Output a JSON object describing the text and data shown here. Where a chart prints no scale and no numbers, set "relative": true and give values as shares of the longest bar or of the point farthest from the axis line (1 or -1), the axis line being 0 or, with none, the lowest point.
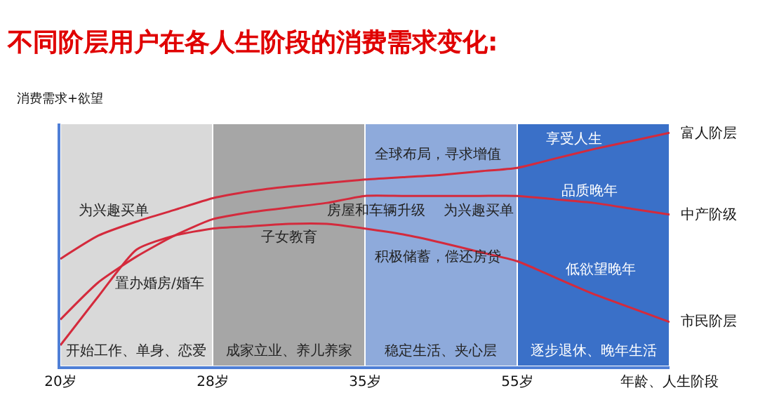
{
  "chart_data": {
    "type": "line",
    "title": "不同阶层用户在各人生阶段的消费需求变化:",
    "ylabel": "消费需求+欲望",
    "relative": true,
    "legend": false,
    "grid": false,
    "tick_labels": "x",
    "categories": [
      "20岁",
      null,
      null,
      null,
      "28岁",
      null,
      null,
      null,
      "35岁",
      null,
      null,
      null,
      "55岁",
      null,
      null,
      null,
      "年龄、人生阶段"
    ],
    "series": [
      {
        "name": "富人阶层",
        "color": "#d42a3c",
        "values": [
          0.46,
          0.56,
          0.62,
          0.67,
          0.72,
          0.75,
          0.77,
          0.785,
          0.8,
          0.81,
          0.82,
          0.835,
          0.85,
          0.89,
          0.93,
          0.965,
          1
        ]
      },
      {
        "name": "中产阶级",
        "color": "#d42a3c",
        "values": [
          0.2,
          0.36,
          0.47,
          0.56,
          0.63,
          0.66,
          0.68,
          0.7,
          0.73,
          0.73,
          0.73,
          0.73,
          0.73,
          0.715,
          0.7,
          0.675,
          0.65
        ]
      },
      {
        "name": "市民阶层",
        "color": "#d42a3c",
        "values": [
          0.09,
          0.3,
          0.5,
          0.56,
          0.59,
          0.6,
          0.61,
          0.61,
          0.59,
          0.565,
          0.53,
          0.49,
          0.45,
          0.38,
          0.31,
          0.25,
          0.19
        ]
      }
    ],
    "bands": [
      {
        "axis": "x",
        "from": "20岁",
        "to": "28岁",
        "label": "开始工作、单身、恋爱",
        "color": "#d9d9d9"
      },
      {
        "axis": "x",
        "from": "28岁",
        "to": "35岁",
        "label": "成家立业、养儿养家",
        "color": "#a6a6a6"
      },
      {
        "axis": "x",
        "from": "35岁",
        "to": "55岁",
        "label": "稳定生活、夹心层",
        "color": "#8eaadb"
      },
      {
        "axis": "x",
        "from": "55岁",
        "to": "年龄、人生阶段",
        "label": "逐步退休、晚年生活",
        "color": "#3a70c8"
      }
    ],
    "annotations": [
      "为兴趣买单",
      "置办婚房/婚车",
      "子女教育",
      "房屋和车辆升级",
      "全球布局，寻求增值",
      "为兴趣买单",
      "积极储蓄，偿还房贷",
      "享受人生",
      "品质晚年",
      "低欲望晚年"
    ]
  }
}
